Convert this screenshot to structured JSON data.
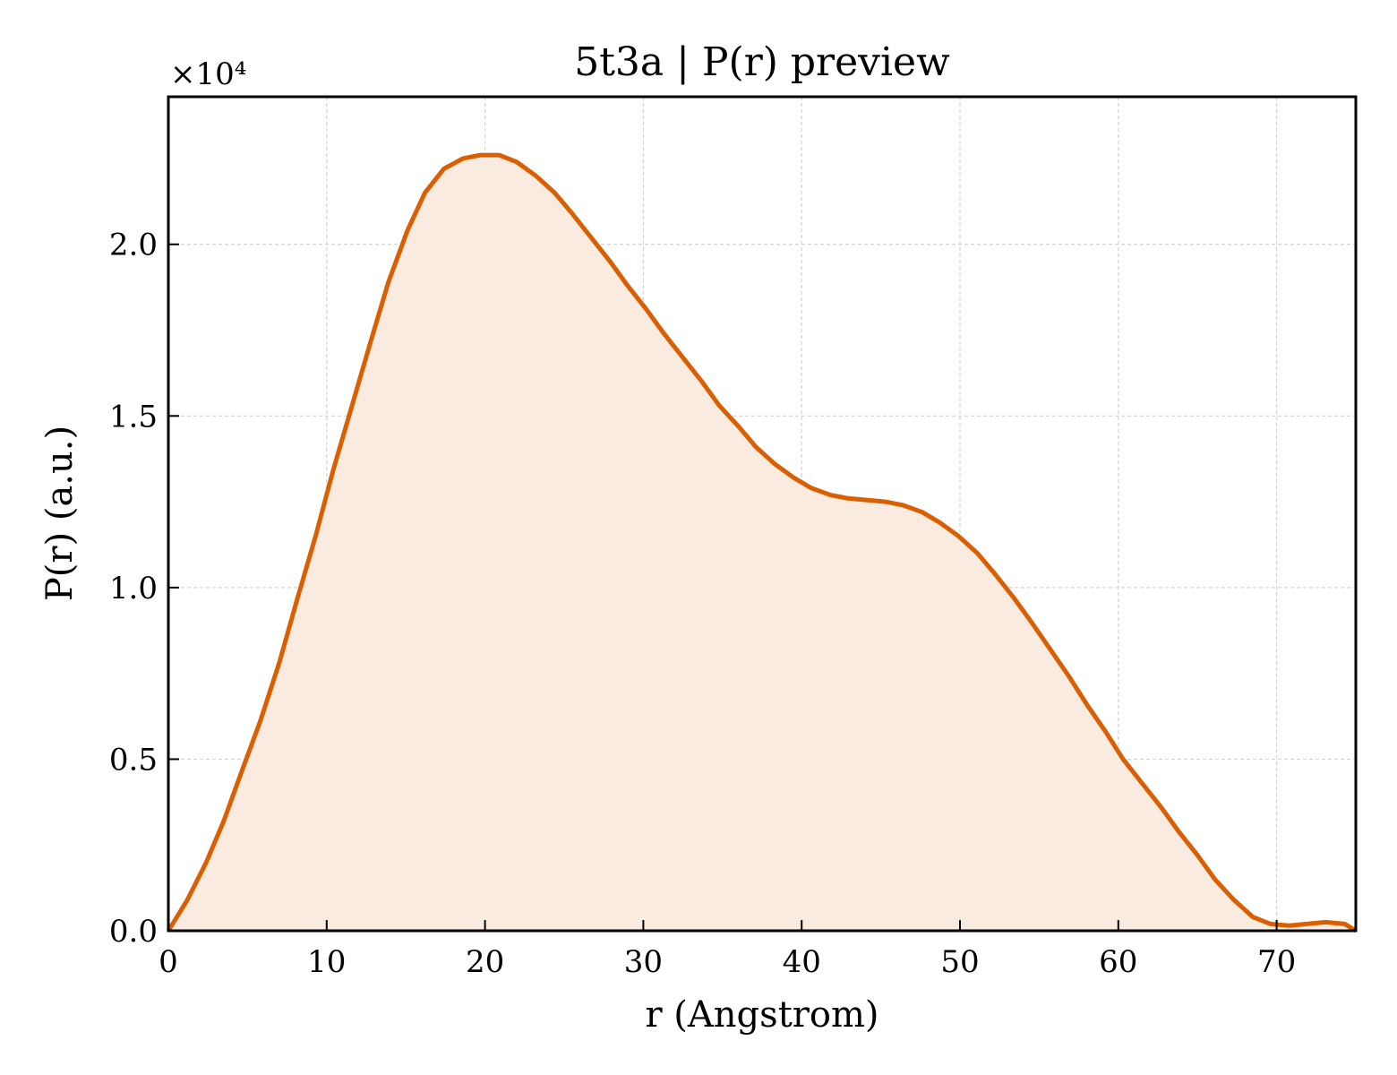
{
  "chart_data": {
    "type": "area",
    "title": "5t3a | P(r) preview",
    "xlabel": "r (Angstrom)",
    "ylabel": "P(r) (a.u.)",
    "y_multiplier": "×10⁴",
    "xlim": [
      0,
      75
    ],
    "ylim": [
      0,
      2.43
    ],
    "x_ticks": [
      0,
      10,
      20,
      30,
      40,
      50,
      60,
      70
    ],
    "x_tick_labels": [
      "0",
      "10",
      "20",
      "30",
      "40",
      "50",
      "60",
      "70"
    ],
    "y_ticks": [
      0,
      0.5,
      1.0,
      1.5,
      2.0
    ],
    "y_tick_labels": [
      "0.0",
      "0.5",
      "1.0",
      "1.5",
      "2.0"
    ],
    "grid": true,
    "colors": {
      "line": "#d95f02",
      "fill": "#f9ebe0",
      "grid": "#d3d3d3",
      "axes": "#000000"
    },
    "series": [
      {
        "x": [
          0,
          1.2,
          2.4,
          3.5,
          4.6,
          5.8,
          7.0,
          8.1,
          9.3,
          10.4,
          11.6,
          12.8,
          13.9,
          15.1,
          16.2,
          17.4,
          18.6,
          19.7,
          20.9,
          22.0,
          23.2,
          24.4,
          25.5,
          26.7,
          27.9,
          29.0,
          30.2,
          31.3,
          32.5,
          33.7,
          34.8,
          36.0,
          37.1,
          38.3,
          39.5,
          40.6,
          41.8,
          42.9,
          44.1,
          45.3,
          46.4,
          47.6,
          48.7,
          49.9,
          51.1,
          52.2,
          53.4,
          54.5,
          55.7,
          56.9,
          58.0,
          59.2,
          60.3,
          61.5,
          62.7,
          63.8,
          65.0,
          66.1,
          67.3,
          68.5,
          69.6,
          70.8,
          71.9,
          73.1,
          74.3,
          75.0
        ],
        "values": [
          0.0,
          0.09,
          0.2,
          0.32,
          0.46,
          0.61,
          0.78,
          0.96,
          1.15,
          1.34,
          1.53,
          1.72,
          1.89,
          2.04,
          2.15,
          2.22,
          2.25,
          2.26,
          2.26,
          2.24,
          2.2,
          2.15,
          2.09,
          2.02,
          1.95,
          1.88,
          1.81,
          1.74,
          1.67,
          1.6,
          1.53,
          1.47,
          1.41,
          1.36,
          1.32,
          1.29,
          1.27,
          1.26,
          1.255,
          1.25,
          1.24,
          1.22,
          1.19,
          1.15,
          1.1,
          1.04,
          0.97,
          0.9,
          0.82,
          0.74,
          0.66,
          0.58,
          0.5,
          0.43,
          0.36,
          0.29,
          0.22,
          0.15,
          0.09,
          0.04,
          0.02,
          0.015,
          0.02,
          0.025,
          0.02,
          0.0
        ]
      }
    ]
  }
}
